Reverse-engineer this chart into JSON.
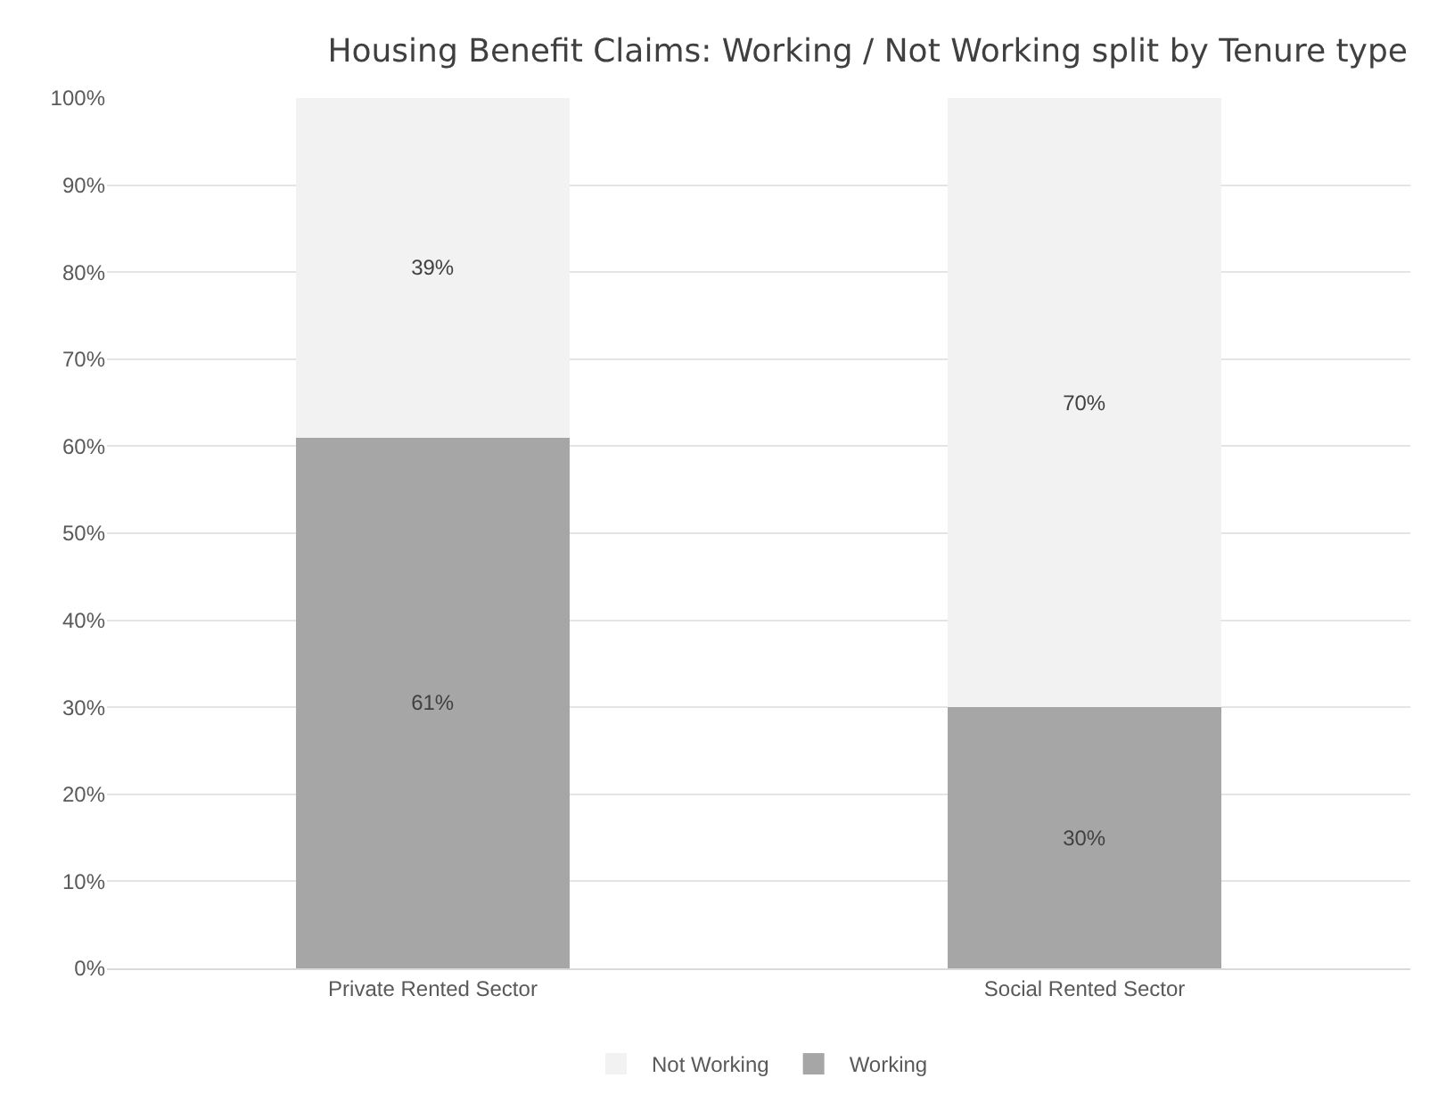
{
  "chart_data": {
    "type": "bar",
    "title": "Housing Benefit Claims: Working / Not Working split by Tenure type",
    "categories": [
      "Private Rented Sector",
      "Social Rented Sector"
    ],
    "stacked": true,
    "series": [
      {
        "name": "Working",
        "color": "#a6a6a6",
        "values": [
          61,
          30
        ],
        "value_labels": [
          "61%",
          "30%"
        ]
      },
      {
        "name": "Not Working",
        "color": "#f2f2f2",
        "values": [
          39,
          70
        ],
        "value_labels": [
          "39%",
          "70%"
        ]
      }
    ],
    "ylim": [
      0,
      100
    ],
    "yticks": [
      {
        "value": 0,
        "label": "0%"
      },
      {
        "value": 10,
        "label": "10%"
      },
      {
        "value": 20,
        "label": "20%"
      },
      {
        "value": 30,
        "label": "30%"
      },
      {
        "value": 40,
        "label": "40%"
      },
      {
        "value": 50,
        "label": "50%"
      },
      {
        "value": 60,
        "label": "60%"
      },
      {
        "value": 70,
        "label": "70%"
      },
      {
        "value": 80,
        "label": "80%"
      },
      {
        "value": 90,
        "label": "90%"
      },
      {
        "value": 100,
        "label": "100%"
      }
    ],
    "grid": "y",
    "legend": "bottom"
  }
}
